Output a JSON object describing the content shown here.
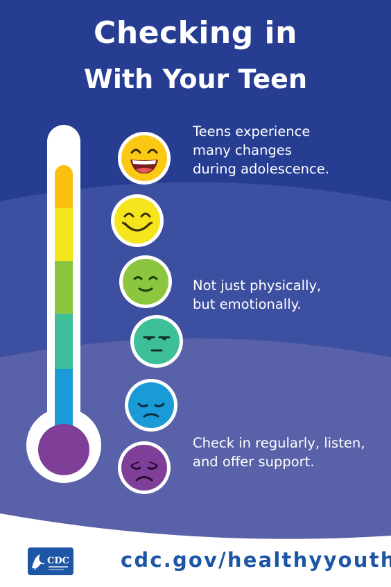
{
  "title": {
    "line1": "Checking in",
    "line2": "With Your Teen"
  },
  "messages": [
    "Teens experience\nmany changes\nduring adolescence.",
    "Not just physically,\nbut emotionally.",
    "Check in regularly, listen,\nand offer support."
  ],
  "thermometer": {
    "levels": [
      "orange",
      "yellow",
      "green",
      "teal",
      "blue",
      "purple"
    ],
    "colors": [
      "#fbbf10",
      "#f4e51d",
      "#8cc63f",
      "#3fbf99",
      "#1a9bd7",
      "#7f3f98"
    ]
  },
  "moods": [
    {
      "icon": "very-happy-face-icon",
      "color": "#fbbf10"
    },
    {
      "icon": "happy-face-icon",
      "color": "#f4e51d"
    },
    {
      "icon": "content-face-icon",
      "color": "#8cc63f"
    },
    {
      "icon": "neutral-face-icon",
      "color": "#3fbf99"
    },
    {
      "icon": "sad-face-icon",
      "color": "#1a9bd7"
    },
    {
      "icon": "very-sad-face-icon",
      "color": "#7f3f98"
    }
  ],
  "logo": {
    "text": "CDC",
    "icon": "cdc-logo-icon"
  },
  "url": "cdc.gov/healthyyouth",
  "colors": {
    "band1": "#263d92",
    "band2": "#3c4fa0",
    "band3": "#5962a8",
    "url": "#1d56a5"
  }
}
